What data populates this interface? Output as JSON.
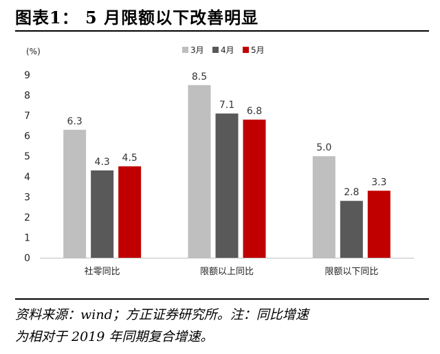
{
  "figure": {
    "title": "图表1：  5 月限额以下改善明显",
    "source_line1": "资料来源：wind；方正证券研究所。注：同比增速",
    "source_line2": "为相对于 2019 年同期复合增速。"
  },
  "chart_data": {
    "type": "bar",
    "title": "",
    "xlabel": "",
    "ylabel": "(%)",
    "ylim": [
      0,
      9
    ],
    "yticks": [
      0,
      1,
      2,
      3,
      4,
      5,
      6,
      7,
      8,
      9
    ],
    "grid": false,
    "legend_position": "top-center",
    "categories": [
      "社零同比",
      "限额以上同比",
      "限额以下同比"
    ],
    "series": [
      {
        "name": "3月",
        "values": [
          6.3,
          8.5,
          5.0
        ],
        "color": "#bfbfbf"
      },
      {
        "name": "4月",
        "values": [
          4.3,
          7.1,
          2.8
        ],
        "color": "#595959"
      },
      {
        "name": "5月",
        "values": [
          4.5,
          6.8,
          3.3
        ],
        "color": "#c00000"
      }
    ],
    "value_labels": [
      [
        "6.3",
        "8.5",
        "5.0"
      ],
      [
        "4.3",
        "7.1",
        "2.8"
      ],
      [
        "4.5",
        "6.8",
        "3.3"
      ]
    ]
  }
}
